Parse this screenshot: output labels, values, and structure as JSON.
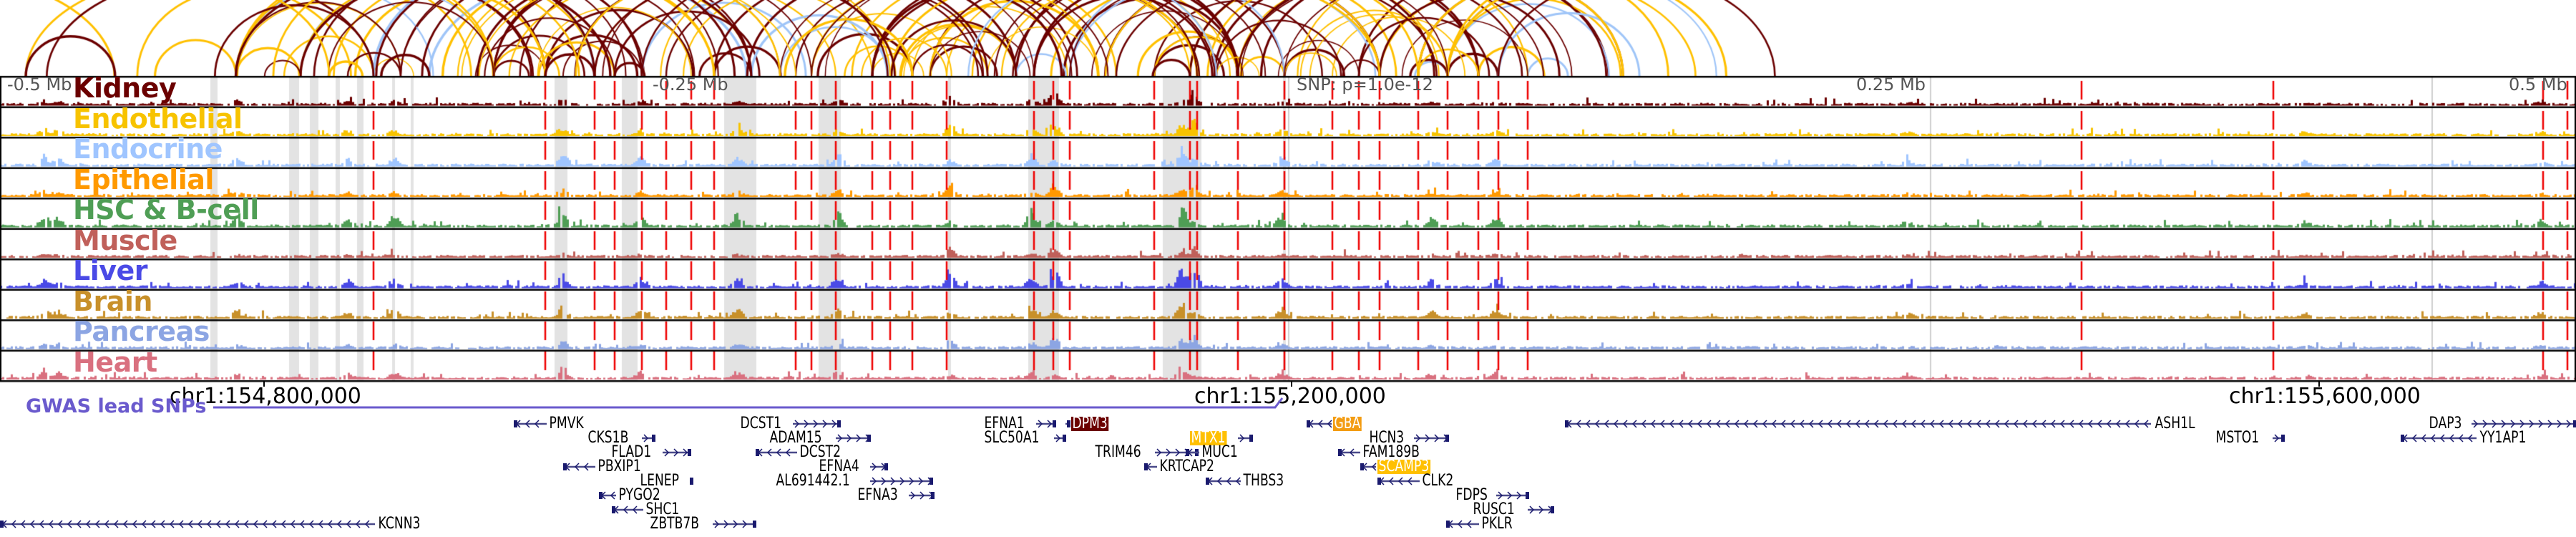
{
  "axis": {
    "top_labels": [
      "-0.5 Mb",
      "-0.25 Mb",
      "SNP: p=1.0e-12",
      "0.25 Mb",
      "0.5 Mb"
    ],
    "coords": [
      "chr1:154,800,000",
      "chr1:155,200,000",
      "chr1:155,600,000"
    ]
  },
  "tracks": [
    {
      "label": "Kidney",
      "color": "#6b0000"
    },
    {
      "label": "Endothelial",
      "color": "#f7c300"
    },
    {
      "label": "Endocrine",
      "color": "#9fc5ff"
    },
    {
      "label": "Epithelial",
      "color": "#ff9900"
    },
    {
      "label": "HSC & B-cell",
      "color": "#4f9e55"
    },
    {
      "label": "Muscle",
      "color": "#c0605a"
    },
    {
      "label": "Liver",
      "color": "#4a4ae6"
    },
    {
      "label": "Brain",
      "color": "#c8902a"
    },
    {
      "label": "Pancreas",
      "color": "#8ca5e3"
    },
    {
      "label": "Heart",
      "color": "#d9707f"
    }
  ],
  "gwas": {
    "label": "GWAS lead SNPs",
    "color": "#6a5acd"
  },
  "snp_line_color": "#ee0000",
  "arc_colors": [
    "#6b0000",
    "#ffc000",
    "#9fc5f8"
  ],
  "genes": [
    {
      "name": "PMVK",
      "strand": "-"
    },
    {
      "name": "CKS1B",
      "strand": "+"
    },
    {
      "name": "FLAD1",
      "strand": "+"
    },
    {
      "name": "PBXIP1",
      "strand": "-"
    },
    {
      "name": "LENEP",
      "strand": "+"
    },
    {
      "name": "PYGO2",
      "strand": "-"
    },
    {
      "name": "SHC1",
      "strand": "-"
    },
    {
      "name": "ZBTB7B",
      "strand": "+"
    },
    {
      "name": "DCST1",
      "strand": "+"
    },
    {
      "name": "ADAM15",
      "strand": "+"
    },
    {
      "name": "DCST2",
      "strand": "-"
    },
    {
      "name": "EFNA4",
      "strand": "+"
    },
    {
      "name": "AL691442.1",
      "strand": "+"
    },
    {
      "name": "EFNA3",
      "strand": "+"
    },
    {
      "name": "EFNA1",
      "strand": "+"
    },
    {
      "name": "DPM3",
      "strand": "+",
      "highlight": "#6b0000"
    },
    {
      "name": "SLC50A1",
      "strand": "+"
    },
    {
      "name": "MTX1",
      "strand": "+",
      "highlight": "#ffc000"
    },
    {
      "name": "TRIM46",
      "strand": "+"
    },
    {
      "name": "MUC1",
      "strand": "-"
    },
    {
      "name": "KRTCAP2",
      "strand": "-"
    },
    {
      "name": "THBS3",
      "strand": "-"
    },
    {
      "name": "GBA",
      "strand": "-",
      "highlight": "#f39c12"
    },
    {
      "name": "HCN3",
      "strand": "+"
    },
    {
      "name": "FAM189B",
      "strand": "-"
    },
    {
      "name": "SCAMP3",
      "strand": "-",
      "highlight": "#ffc000"
    },
    {
      "name": "CLK2",
      "strand": "-"
    },
    {
      "name": "FDPS",
      "strand": "+"
    },
    {
      "name": "RUSC1",
      "strand": "+"
    },
    {
      "name": "PKLR",
      "strand": "-"
    },
    {
      "name": "ASH1L",
      "strand": "-"
    },
    {
      "name": "MSTO1",
      "strand": "+"
    },
    {
      "name": "DAP3",
      "strand": "+"
    },
    {
      "name": "YY1AP1",
      "strand": "-"
    },
    {
      "name": "KCNN3",
      "strand": "-"
    }
  ]
}
